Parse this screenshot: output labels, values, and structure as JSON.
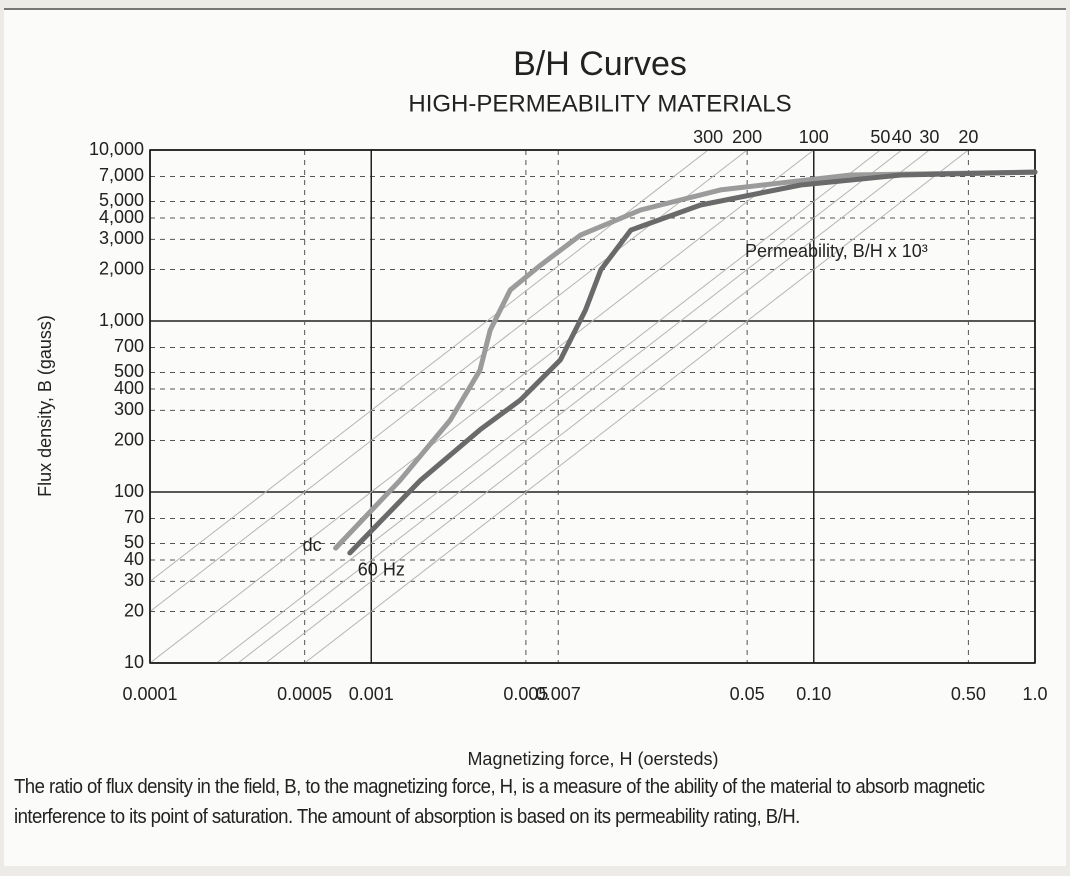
{
  "chart_data": {
    "type": "line",
    "title": "B/H Curves",
    "subtitle": "HIGH-PERMEABILITY MATERIALS",
    "x_label": "Magnetizing force, H (oersteds)",
    "y_label": "Flux density, B (gauss)",
    "xscale": "log",
    "yscale": "log",
    "grid": true,
    "xlim": [
      0.0001,
      1.0
    ],
    "ylim": [
      10,
      10000
    ],
    "xticks": [
      0.0001,
      0.0005,
      0.001,
      0.005,
      0.007,
      0.05,
      {
        "value": 0.1,
        "label": "0.10"
      },
      {
        "value": 0.5,
        "label": "0.50"
      },
      {
        "value": 1.0,
        "label": "1.0"
      }
    ],
    "yticks": [
      10,
      20,
      30,
      40,
      50,
      70,
      100,
      200,
      300,
      400,
      500,
      700,
      {
        "value": 1000,
        "label": "1,000"
      },
      {
        "value": 2000,
        "label": "2,000"
      },
      {
        "value": 3000,
        "label": "3,000"
      },
      {
        "value": 4000,
        "label": "4,000"
      },
      {
        "value": 5000,
        "label": "5,000"
      },
      {
        "value": 7000,
        "label": "7,000"
      },
      {
        "value": 10000,
        "label": "10,000"
      }
    ],
    "permeability": {
      "label": "Permeability, B/H x 10³",
      "values": [
        300,
        200,
        100,
        50,
        40,
        30,
        20
      ],
      "color": "#b5b5b5"
    },
    "series": [
      {
        "name": "dc",
        "color": "#9b9b9b",
        "x": [
          0.00069,
          0.00135,
          0.00228,
          0.0031,
          0.00345,
          0.00425,
          0.00582,
          0.00883,
          0.0165,
          0.0379,
          0.147,
          1.0
        ],
        "values": [
          47,
          117,
          264,
          516,
          885,
          1520,
          2120,
          3180,
          4460,
          5840,
          7140,
          7430
        ]
      },
      {
        "name": "60 Hz",
        "color": "#6a6a6a",
        "x": [
          0.0008,
          0.00167,
          0.0031,
          0.00472,
          0.00716,
          0.0093,
          0.0109,
          0.0149,
          0.0308,
          0.0873,
          0.248,
          1.0
        ],
        "values": [
          44,
          117,
          231,
          345,
          592,
          1160,
          1990,
          3400,
          4770,
          6240,
          7140,
          7430
        ]
      }
    ],
    "caption": "The ratio of flux density in the field, B, to the magnetizing force, H, is a measure of the ability of the material to absorb magnetic interference to its point of saturation. The amount of absorption is based on its permeability rating, B/H."
  }
}
